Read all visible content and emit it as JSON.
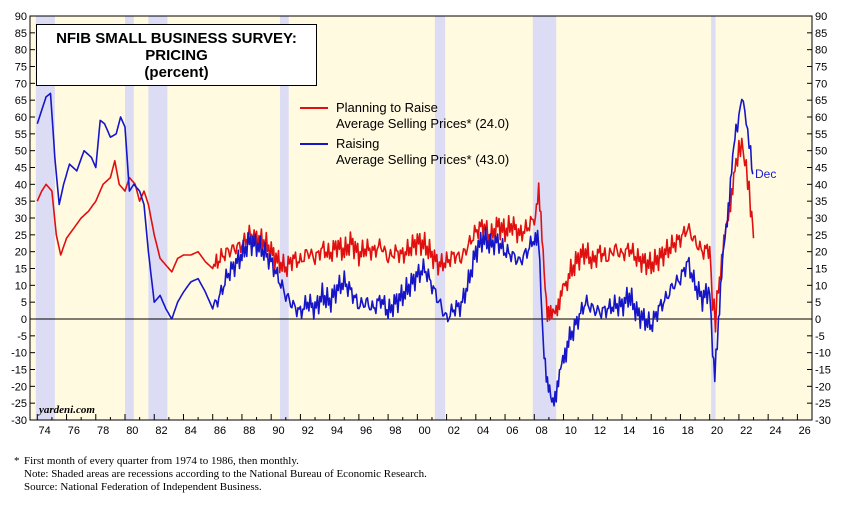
{
  "chart_data": {
    "type": "line",
    "title": "NFIB SMALL BUSINESS SURVEY:",
    "title_line2": "PRICING",
    "subtitle": "(percent)",
    "xlim": [
      1973.5,
      2027
    ],
    "ylim": [
      -30,
      90
    ],
    "y_ticks": [
      -30,
      -25,
      -20,
      -15,
      -10,
      -5,
      0,
      5,
      10,
      15,
      20,
      25,
      30,
      35,
      40,
      45,
      50,
      55,
      60,
      65,
      70,
      75,
      80,
      85,
      90
    ],
    "x_ticks": [
      {
        "year": 1974,
        "label": "74"
      },
      {
        "year": 1976,
        "label": "76"
      },
      {
        "year": 1978,
        "label": "78"
      },
      {
        "year": 1980,
        "label": "80"
      },
      {
        "year": 1982,
        "label": "82"
      },
      {
        "year": 1984,
        "label": "84"
      },
      {
        "year": 1986,
        "label": "86"
      },
      {
        "year": 1988,
        "label": "88"
      },
      {
        "year": 1990,
        "label": "90"
      },
      {
        "year": 1992,
        "label": "92"
      },
      {
        "year": 1994,
        "label": "94"
      },
      {
        "year": 1996,
        "label": "96"
      },
      {
        "year": 1998,
        "label": "98"
      },
      {
        "year": 2000,
        "label": "00"
      },
      {
        "year": 2002,
        "label": "02"
      },
      {
        "year": 2004,
        "label": "04"
      },
      {
        "year": 2006,
        "label": "06"
      },
      {
        "year": 2008,
        "label": "08"
      },
      {
        "year": 2010,
        "label": "10"
      },
      {
        "year": 2012,
        "label": "12"
      },
      {
        "year": 2014,
        "label": "14"
      },
      {
        "year": 2016,
        "label": "16"
      },
      {
        "year": 2018,
        "label": "18"
      },
      {
        "year": 2020,
        "label": "20"
      },
      {
        "year": 2022,
        "label": "22"
      },
      {
        "year": 2024,
        "label": "24"
      },
      {
        "year": 2026,
        "label": "26"
      }
    ],
    "recessions": [
      [
        1973.9,
        1975.2
      ],
      [
        1980.0,
        1980.6
      ],
      [
        1981.6,
        1982.9
      ],
      [
        1990.6,
        1991.2
      ],
      [
        2001.2,
        2001.9
      ],
      [
        2007.9,
        2009.5
      ],
      [
        2020.1,
        2020.4
      ]
    ],
    "grid": false,
    "legend_position": "top-center",
    "series": [
      {
        "name": "Planning to Raise",
        "name_line2": "Average Selling Prices* (24.0)",
        "color": "#e01010",
        "points": [
          [
            1974.0,
            35
          ],
          [
            1974.3,
            38
          ],
          [
            1974.6,
            40
          ],
          [
            1975.0,
            38
          ],
          [
            1975.3,
            25
          ],
          [
            1975.6,
            19
          ],
          [
            1976.0,
            24
          ],
          [
            1976.5,
            27
          ],
          [
            1977.0,
            30
          ],
          [
            1977.5,
            32
          ],
          [
            1978.0,
            35
          ],
          [
            1978.5,
            40
          ],
          [
            1979.0,
            42
          ],
          [
            1979.3,
            47
          ],
          [
            1979.6,
            40
          ],
          [
            1980.0,
            38
          ],
          [
            1980.3,
            42
          ],
          [
            1980.7,
            40
          ],
          [
            1981.0,
            35
          ],
          [
            1981.3,
            38
          ],
          [
            1981.6,
            34
          ],
          [
            1982.0,
            25
          ],
          [
            1982.4,
            18
          ],
          [
            1982.8,
            16
          ],
          [
            1983.2,
            14
          ],
          [
            1983.6,
            18
          ],
          [
            1984.0,
            19
          ],
          [
            1984.5,
            19
          ],
          [
            1985.0,
            20
          ],
          [
            1985.5,
            17
          ],
          [
            1986.0,
            15
          ],
          [
            1986.5,
            18
          ],
          [
            1987.0,
            20
          ],
          [
            1987.5,
            21
          ],
          [
            1988.0,
            22
          ],
          [
            1988.5,
            25
          ],
          [
            1989.0,
            24
          ],
          [
            1989.5,
            23
          ],
          [
            1990.0,
            20
          ],
          [
            1990.5,
            17
          ],
          [
            1991.0,
            15
          ],
          [
            1991.5,
            18
          ],
          [
            1992.0,
            17
          ],
          [
            1992.5,
            20
          ],
          [
            1993.0,
            18
          ],
          [
            1993.5,
            21
          ],
          [
            1994.0,
            19
          ],
          [
            1994.5,
            22
          ],
          [
            1995.0,
            20
          ],
          [
            1995.5,
            23
          ],
          [
            1996.0,
            19
          ],
          [
            1996.5,
            21
          ],
          [
            1997.0,
            20
          ],
          [
            1997.5,
            22
          ],
          [
            1998.0,
            18
          ],
          [
            1998.5,
            20
          ],
          [
            1999.0,
            19
          ],
          [
            1999.5,
            21
          ],
          [
            2000.0,
            23
          ],
          [
            2000.5,
            22
          ],
          [
            2001.0,
            19
          ],
          [
            2001.5,
            16
          ],
          [
            2002.0,
            17
          ],
          [
            2002.5,
            19
          ],
          [
            2003.0,
            18
          ],
          [
            2003.5,
            22
          ],
          [
            2004.0,
            26
          ],
          [
            2004.5,
            28
          ],
          [
            2005.0,
            24
          ],
          [
            2005.5,
            28
          ],
          [
            2006.0,
            26
          ],
          [
            2006.5,
            28
          ],
          [
            2007.0,
            25
          ],
          [
            2007.5,
            27
          ],
          [
            2008.0,
            30
          ],
          [
            2008.3,
            37
          ],
          [
            2008.6,
            20
          ],
          [
            2008.9,
            2
          ],
          [
            2009.2,
            0
          ],
          [
            2009.5,
            4
          ],
          [
            2009.8,
            6
          ],
          [
            2010.1,
            10
          ],
          [
            2010.5,
            14
          ],
          [
            2011.0,
            18
          ],
          [
            2011.5,
            20
          ],
          [
            2012.0,
            17
          ],
          [
            2012.5,
            20
          ],
          [
            2013.0,
            18
          ],
          [
            2013.5,
            21
          ],
          [
            2014.0,
            19
          ],
          [
            2014.5,
            21
          ],
          [
            2015.0,
            18
          ],
          [
            2015.5,
            17
          ],
          [
            2016.0,
            16
          ],
          [
            2016.5,
            18
          ],
          [
            2017.0,
            20
          ],
          [
            2017.5,
            22
          ],
          [
            2018.0,
            24
          ],
          [
            2018.5,
            27
          ],
          [
            2019.0,
            23
          ],
          [
            2019.5,
            20
          ],
          [
            2020.0,
            21
          ],
          [
            2020.2,
            5
          ],
          [
            2020.4,
            0
          ],
          [
            2020.6,
            10
          ],
          [
            2020.9,
            20
          ],
          [
            2021.2,
            28
          ],
          [
            2021.5,
            38
          ],
          [
            2021.8,
            46
          ],
          [
            2022.0,
            50
          ],
          [
            2022.2,
            52
          ],
          [
            2022.4,
            47
          ],
          [
            2022.6,
            42
          ],
          [
            2022.8,
            33
          ],
          [
            2022.95,
            30
          ],
          [
            2023.0,
            24
          ]
        ]
      },
      {
        "name": "Raising",
        "name_line2": "Average Selling Prices* (43.0)",
        "end_label": "Dec",
        "color": "#1616c8",
        "points": [
          [
            1974.0,
            58
          ],
          [
            1974.3,
            62
          ],
          [
            1974.6,
            66
          ],
          [
            1974.9,
            67
          ],
          [
            1975.2,
            48
          ],
          [
            1975.5,
            34
          ],
          [
            1975.8,
            40
          ],
          [
            1976.2,
            46
          ],
          [
            1976.7,
            44
          ],
          [
            1977.2,
            50
          ],
          [
            1977.7,
            48
          ],
          [
            1978.0,
            45
          ],
          [
            1978.3,
            59
          ],
          [
            1978.6,
            58
          ],
          [
            1979.0,
            54
          ],
          [
            1979.4,
            55
          ],
          [
            1979.7,
            60
          ],
          [
            1980.0,
            57
          ],
          [
            1980.3,
            38
          ],
          [
            1980.6,
            40
          ],
          [
            1981.0,
            38
          ],
          [
            1981.3,
            34
          ],
          [
            1981.6,
            20
          ],
          [
            1982.0,
            5
          ],
          [
            1982.4,
            7
          ],
          [
            1982.8,
            3
          ],
          [
            1983.2,
            0
          ],
          [
            1983.6,
            5
          ],
          [
            1984.0,
            8
          ],
          [
            1984.5,
            11
          ],
          [
            1985.0,
            12
          ],
          [
            1985.5,
            8
          ],
          [
            1986.0,
            3
          ],
          [
            1986.5,
            7
          ],
          [
            1987.0,
            13
          ],
          [
            1987.5,
            16
          ],
          [
            1988.0,
            19
          ],
          [
            1988.5,
            23
          ],
          [
            1989.0,
            22
          ],
          [
            1989.5,
            20
          ],
          [
            1990.0,
            17
          ],
          [
            1990.5,
            12
          ],
          [
            1991.0,
            7
          ],
          [
            1991.5,
            4
          ],
          [
            1992.0,
            2
          ],
          [
            1992.5,
            5
          ],
          [
            1993.0,
            3
          ],
          [
            1993.5,
            7
          ],
          [
            1994.0,
            5
          ],
          [
            1994.5,
            9
          ],
          [
            1995.0,
            11
          ],
          [
            1995.5,
            8
          ],
          [
            1996.0,
            4
          ],
          [
            1996.5,
            5
          ],
          [
            1997.0,
            3
          ],
          [
            1997.5,
            6
          ],
          [
            1998.0,
            2
          ],
          [
            1998.5,
            5
          ],
          [
            1999.0,
            7
          ],
          [
            1999.5,
            10
          ],
          [
            2000.0,
            13
          ],
          [
            2000.5,
            15
          ],
          [
            2001.0,
            10
          ],
          [
            2001.5,
            5
          ],
          [
            2002.0,
            0
          ],
          [
            2002.5,
            3
          ],
          [
            2003.0,
            4
          ],
          [
            2003.5,
            11
          ],
          [
            2004.0,
            20
          ],
          [
            2004.5,
            24
          ],
          [
            2005.0,
            22
          ],
          [
            2005.5,
            23
          ],
          [
            2006.0,
            20
          ],
          [
            2006.5,
            19
          ],
          [
            2007.0,
            17
          ],
          [
            2007.5,
            20
          ],
          [
            2008.0,
            24
          ],
          [
            2008.3,
            22
          ],
          [
            2008.6,
            -5
          ],
          [
            2008.9,
            -20
          ],
          [
            2009.2,
            -25
          ],
          [
            2009.5,
            -21
          ],
          [
            2009.8,
            -16
          ],
          [
            2010.1,
            -10
          ],
          [
            2010.5,
            -5
          ],
          [
            2011.0,
            0
          ],
          [
            2011.5,
            5
          ],
          [
            2012.0,
            3
          ],
          [
            2012.5,
            2
          ],
          [
            2013.0,
            3
          ],
          [
            2013.5,
            4
          ],
          [
            2014.0,
            4
          ],
          [
            2014.5,
            7
          ],
          [
            2015.0,
            2
          ],
          [
            2015.5,
            0
          ],
          [
            2016.0,
            -2
          ],
          [
            2016.5,
            3
          ],
          [
            2017.0,
            6
          ],
          [
            2017.5,
            10
          ],
          [
            2018.0,
            12
          ],
          [
            2018.5,
            17
          ],
          [
            2019.0,
            10
          ],
          [
            2019.5,
            6
          ],
          [
            2020.0,
            9
          ],
          [
            2020.2,
            -10
          ],
          [
            2020.35,
            -18
          ],
          [
            2020.6,
            0
          ],
          [
            2020.9,
            17
          ],
          [
            2021.2,
            30
          ],
          [
            2021.5,
            45
          ],
          [
            2021.8,
            55
          ],
          [
            2022.0,
            60
          ],
          [
            2022.2,
            66
          ],
          [
            2022.4,
            62
          ],
          [
            2022.6,
            55
          ],
          [
            2022.8,
            50
          ],
          [
            2022.95,
            43
          ]
        ]
      }
    ],
    "annotation": "yardeni.com"
  },
  "notes": {
    "star": "*",
    "line1": "First month of every quarter from 1974 to 1986, then monthly.",
    "line2": "Note: Shaded areas are recessions according to the National Bureau of Economic Research.",
    "line3": "Source: National Federation of Independent Business."
  }
}
